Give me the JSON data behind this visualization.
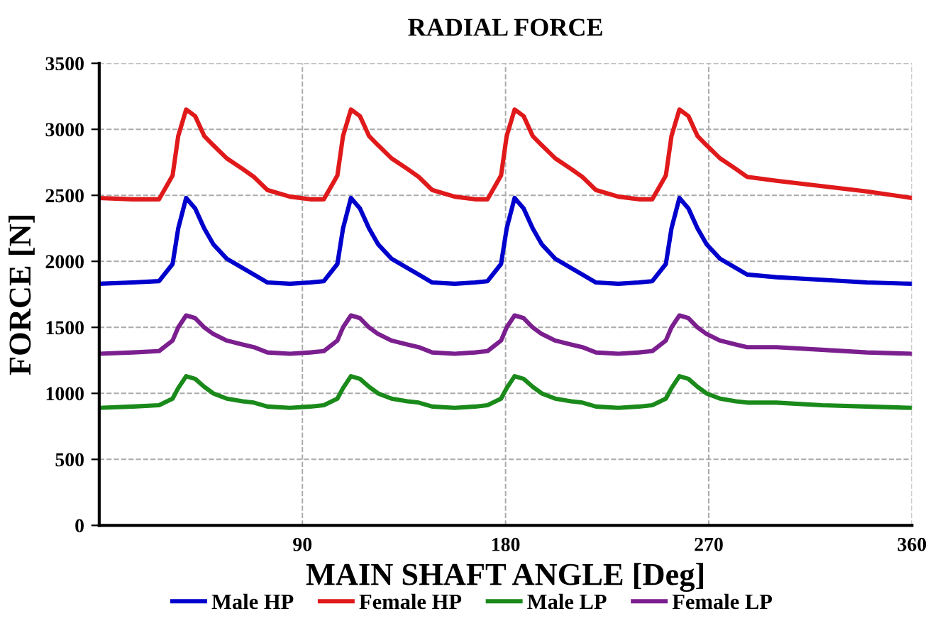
{
  "chart_data": {
    "type": "line",
    "title": "RADIAL FORCE",
    "xlabel": "MAIN SHAFT ANGLE [Deg]",
    "ylabel": "FORCE [N]",
    "x": [
      0,
      15,
      26.5,
      32.5,
      35,
      38.5,
      42.5,
      46.5,
      50.5,
      56.5,
      63.5,
      68.5,
      74.5,
      84.5,
      93.5,
      99.5,
      105.5,
      108,
      111.5,
      115.5,
      119.5,
      123.5,
      129.5,
      136.5,
      141.5,
      147.5,
      157.5,
      166.5,
      172,
      178,
      180.5,
      184,
      188,
      192,
      196,
      202,
      209,
      214,
      220,
      230,
      239,
      245,
      251,
      253.5,
      257,
      261,
      265,
      269,
      275,
      282,
      287,
      300,
      320,
      340,
      360
    ],
    "series": [
      {
        "name": "Male HP",
        "color": "#0000cc",
        "values": [
          1830,
          1840,
          1850,
          1980,
          2250,
          2480,
          2400,
          2250,
          2130,
          2020,
          1950,
          1900,
          1840,
          1830,
          1840,
          1850,
          1980,
          2250,
          2480,
          2400,
          2250,
          2130,
          2020,
          1950,
          1900,
          1840,
          1830,
          1840,
          1850,
          1980,
          2250,
          2480,
          2400,
          2250,
          2130,
          2020,
          1950,
          1900,
          1840,
          1830,
          1840,
          1850,
          1980,
          2250,
          2480,
          2400,
          2250,
          2130,
          2020,
          1950,
          1900,
          1880,
          1860,
          1840,
          1830
        ]
      },
      {
        "name": "Female HP",
        "color": "#e0191b",
        "values": [
          2480,
          2470,
          2470,
          2650,
          2950,
          3150,
          3100,
          2950,
          2880,
          2780,
          2700,
          2640,
          2540,
          2490,
          2470,
          2470,
          2650,
          2950,
          3150,
          3100,
          2950,
          2880,
          2780,
          2700,
          2640,
          2540,
          2490,
          2470,
          2470,
          2650,
          2950,
          3150,
          3100,
          2950,
          2880,
          2780,
          2700,
          2640,
          2540,
          2490,
          2470,
          2470,
          2650,
          2950,
          3150,
          3100,
          2950,
          2880,
          2780,
          2700,
          2640,
          2610,
          2570,
          2530,
          2480
        ]
      },
      {
        "name": "Male LP",
        "color": "#1a8a1a",
        "values": [
          890,
          900,
          910,
          960,
          1040,
          1130,
          1110,
          1050,
          1000,
          960,
          940,
          930,
          900,
          890,
          900,
          910,
          960,
          1040,
          1130,
          1110,
          1050,
          1000,
          960,
          940,
          930,
          900,
          890,
          900,
          910,
          960,
          1040,
          1130,
          1110,
          1050,
          1000,
          960,
          940,
          930,
          900,
          890,
          900,
          910,
          960,
          1040,
          1130,
          1110,
          1050,
          1000,
          960,
          940,
          930,
          930,
          910,
          900,
          890
        ]
      },
      {
        "name": "Female LP",
        "color": "#7b1f8f",
        "values": [
          1300,
          1310,
          1320,
          1400,
          1500,
          1590,
          1570,
          1500,
          1450,
          1400,
          1370,
          1350,
          1310,
          1300,
          1310,
          1320,
          1400,
          1500,
          1590,
          1570,
          1500,
          1450,
          1400,
          1370,
          1350,
          1310,
          1300,
          1310,
          1320,
          1400,
          1500,
          1590,
          1570,
          1500,
          1450,
          1400,
          1370,
          1350,
          1310,
          1300,
          1310,
          1320,
          1400,
          1500,
          1590,
          1570,
          1500,
          1450,
          1400,
          1370,
          1350,
          1350,
          1330,
          1310,
          1300
        ]
      }
    ],
    "xlim": [
      0,
      360
    ],
    "xticks": [
      90,
      180,
      270,
      360
    ],
    "ylim": [
      0,
      3500
    ],
    "yticks": [
      0,
      500,
      1000,
      1500,
      2000,
      2500,
      3000,
      3500
    ],
    "grid": true,
    "legend": "bottom",
    "line_style": "solid",
    "marker": "none"
  }
}
